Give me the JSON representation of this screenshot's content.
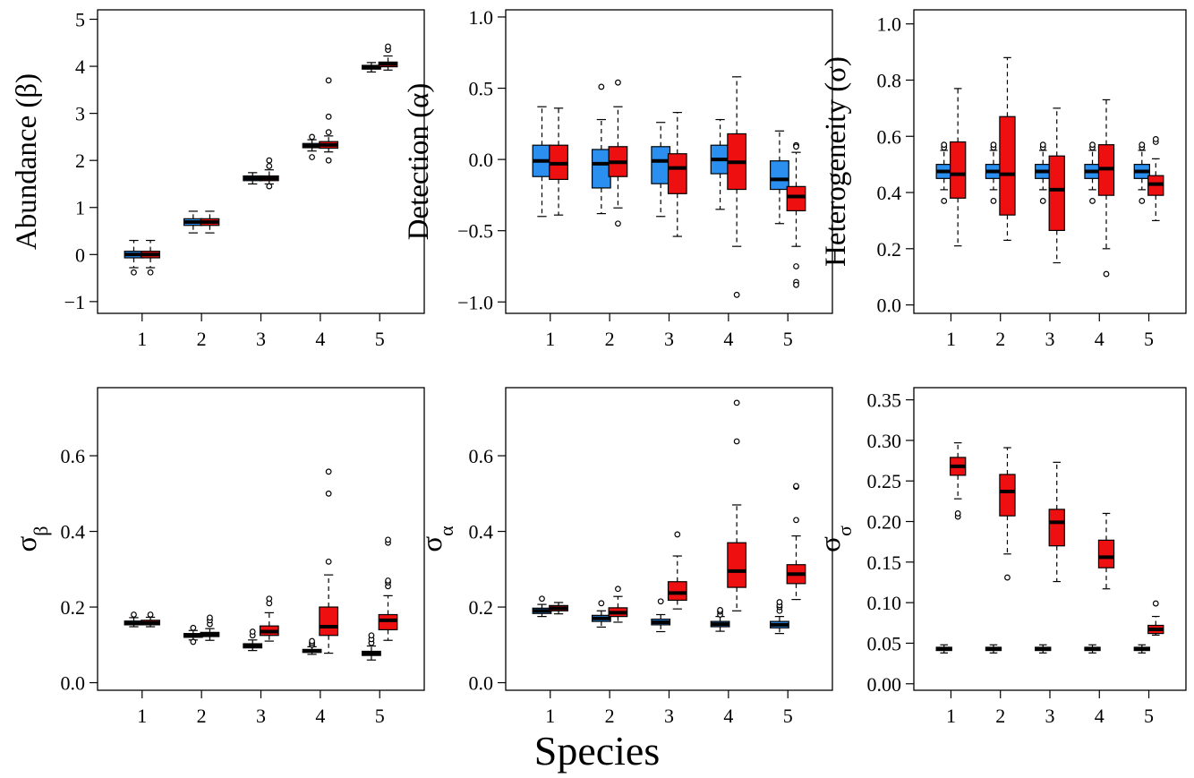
{
  "figure": {
    "xlabel": "Species",
    "colors": {
      "group_a": "#2b8ff0",
      "group_b": "#ee1010",
      "median": "#000000",
      "outlier_fill": "#ffffff"
    }
  },
  "chart_data": [
    {
      "type": "boxplot",
      "ylabel": "Abundance (β)",
      "ylim": [
        -1.25,
        5.2
      ],
      "yticks": [
        -1,
        0,
        1,
        2,
        3,
        4,
        5
      ],
      "yticklabels": [
        "−1",
        "0",
        "1",
        "2",
        "3",
        "4",
        "5"
      ],
      "categories": [
        "1",
        "2",
        "3",
        "4",
        "5"
      ],
      "series": [
        {
          "color": "#2b8ff0",
          "boxes": [
            {
              "whislo": -0.28,
              "q1": -0.07,
              "med": 0.0,
              "q3": 0.07,
              "whishi": 0.3,
              "fliers": [
                -0.38
              ]
            },
            {
              "whislo": 0.46,
              "q1": 0.62,
              "med": 0.69,
              "q3": 0.76,
              "whishi": 0.92,
              "fliers": []
            },
            {
              "whislo": 1.5,
              "q1": 1.57,
              "med": 1.62,
              "q3": 1.67,
              "whishi": 1.74,
              "fliers": []
            },
            {
              "whislo": 2.2,
              "q1": 2.27,
              "med": 2.31,
              "q3": 2.36,
              "whishi": 2.44,
              "fliers": [
                2.07,
                2.5
              ]
            },
            {
              "whislo": 3.88,
              "q1": 3.94,
              "med": 3.98,
              "q3": 4.02,
              "whishi": 4.08,
              "fliers": []
            }
          ]
        },
        {
          "color": "#ee1010",
          "boxes": [
            {
              "whislo": -0.28,
              "q1": -0.07,
              "med": 0.0,
              "q3": 0.07,
              "whishi": 0.3,
              "fliers": [
                -0.38
              ]
            },
            {
              "whislo": 0.46,
              "q1": 0.62,
              "med": 0.69,
              "q3": 0.76,
              "whishi": 0.92,
              "fliers": []
            },
            {
              "whislo": 1.5,
              "q1": 1.57,
              "med": 1.62,
              "q3": 1.67,
              "whishi": 1.8,
              "fliers": [
                1.45,
                1.88,
                2.0
              ]
            },
            {
              "whislo": 2.18,
              "q1": 2.26,
              "med": 2.33,
              "q3": 2.4,
              "whishi": 2.52,
              "fliers": [
                2.0,
                2.6,
                2.93,
                3.7
              ]
            },
            {
              "whislo": 3.92,
              "q1": 3.99,
              "med": 4.05,
              "q3": 4.09,
              "whishi": 4.22,
              "fliers": [
                4.35,
                4.42
              ]
            }
          ]
        }
      ]
    },
    {
      "type": "boxplot",
      "ylabel": "Detection (α)",
      "ylim": [
        -1.08,
        1.05
      ],
      "yticks": [
        -1.0,
        -0.5,
        0.0,
        0.5,
        1.0
      ],
      "yticklabels": [
        "−1.0",
        "−0.5",
        "0.0",
        "0.5",
        "1.0"
      ],
      "categories": [
        "1",
        "2",
        "3",
        "4",
        "5"
      ],
      "series": [
        {
          "color": "#2b8ff0",
          "boxes": [
            {
              "whislo": -0.4,
              "q1": -0.12,
              "med": -0.01,
              "q3": 0.1,
              "whishi": 0.37,
              "fliers": []
            },
            {
              "whislo": -0.38,
              "q1": -0.2,
              "med": -0.03,
              "q3": 0.07,
              "whishi": 0.28,
              "fliers": [
                0.51
              ]
            },
            {
              "whislo": -0.4,
              "q1": -0.17,
              "med": -0.01,
              "q3": 0.09,
              "whishi": 0.26,
              "fliers": []
            },
            {
              "whislo": -0.35,
              "q1": -0.1,
              "med": 0.0,
              "q3": 0.1,
              "whishi": 0.28,
              "fliers": []
            },
            {
              "whislo": -0.45,
              "q1": -0.21,
              "med": -0.14,
              "q3": -0.01,
              "whishi": 0.2,
              "fliers": []
            }
          ]
        },
        {
          "color": "#ee1010",
          "boxes": [
            {
              "whislo": -0.39,
              "q1": -0.14,
              "med": -0.03,
              "q3": 0.1,
              "whishi": 0.36,
              "fliers": []
            },
            {
              "whislo": -0.34,
              "q1": -0.12,
              "med": -0.02,
              "q3": 0.09,
              "whishi": 0.37,
              "fliers": [
                0.54,
                -0.45
              ]
            },
            {
              "whislo": -0.54,
              "q1": -0.24,
              "med": -0.06,
              "q3": 0.04,
              "whishi": 0.33,
              "fliers": []
            },
            {
              "whislo": -0.61,
              "q1": -0.21,
              "med": -0.02,
              "q3": 0.18,
              "whishi": 0.58,
              "fliers": [
                -0.95
              ]
            },
            {
              "whislo": -0.61,
              "q1": -0.36,
              "med": -0.26,
              "q3": -0.19,
              "whishi": 0.05,
              "fliers": [
                0.1,
                0.09,
                -0.75,
                -0.86,
                -0.88
              ]
            }
          ]
        }
      ]
    },
    {
      "type": "boxplot",
      "ylabel": "Heterogeneity (σ)",
      "ylim": [
        -0.03,
        1.05
      ],
      "yticks": [
        0.0,
        0.2,
        0.4,
        0.6,
        0.8,
        1.0
      ],
      "yticklabels": [
        "0.0",
        "0.2",
        "0.4",
        "0.6",
        "0.8",
        "1.0"
      ],
      "categories": [
        "1",
        "2",
        "3",
        "4",
        "5"
      ],
      "series": [
        {
          "color": "#2b8ff0",
          "boxes": [
            {
              "whislo": 0.41,
              "q1": 0.45,
              "med": 0.475,
              "q3": 0.5,
              "whishi": 0.55,
              "fliers": [
                0.37,
                0.56,
                0.57
              ]
            },
            {
              "whislo": 0.41,
              "q1": 0.45,
              "med": 0.475,
              "q3": 0.5,
              "whishi": 0.55,
              "fliers": [
                0.37,
                0.56,
                0.57
              ]
            },
            {
              "whislo": 0.41,
              "q1": 0.45,
              "med": 0.475,
              "q3": 0.5,
              "whishi": 0.55,
              "fliers": [
                0.37,
                0.56,
                0.57
              ]
            },
            {
              "whislo": 0.41,
              "q1": 0.45,
              "med": 0.475,
              "q3": 0.5,
              "whishi": 0.55,
              "fliers": [
                0.37,
                0.56,
                0.57
              ]
            },
            {
              "whislo": 0.41,
              "q1": 0.45,
              "med": 0.475,
              "q3": 0.5,
              "whishi": 0.55,
              "fliers": [
                0.37,
                0.56,
                0.57
              ]
            }
          ]
        },
        {
          "color": "#ee1010",
          "boxes": [
            {
              "whislo": 0.21,
              "q1": 0.38,
              "med": 0.465,
              "q3": 0.58,
              "whishi": 0.77,
              "fliers": []
            },
            {
              "whislo": 0.23,
              "q1": 0.32,
              "med": 0.465,
              "q3": 0.67,
              "whishi": 0.88,
              "fliers": []
            },
            {
              "whislo": 0.15,
              "q1": 0.265,
              "med": 0.41,
              "q3": 0.53,
              "whishi": 0.7,
              "fliers": []
            },
            {
              "whislo": 0.2,
              "q1": 0.39,
              "med": 0.485,
              "q3": 0.57,
              "whishi": 0.73,
              "fliers": [
                0.11
              ]
            },
            {
              "whislo": 0.3,
              "q1": 0.39,
              "med": 0.43,
              "q3": 0.46,
              "whishi": 0.52,
              "fliers": [
                0.58,
                0.59
              ]
            }
          ]
        }
      ]
    },
    {
      "type": "boxplot",
      "ylabel": "σ",
      "ylabel_sub": "β",
      "ylim": [
        -0.02,
        0.78
      ],
      "yticks": [
        0.0,
        0.2,
        0.4,
        0.6
      ],
      "yticklabels": [
        "0.0",
        "0.2",
        "0.4",
        "0.6"
      ],
      "categories": [
        "1",
        "2",
        "3",
        "4",
        "5"
      ],
      "series": [
        {
          "color": "#2b8ff0",
          "boxes": [
            {
              "whislo": 0.148,
              "q1": 0.153,
              "med": 0.157,
              "q3": 0.163,
              "whishi": 0.172,
              "fliers": [
                0.18
              ]
            },
            {
              "whislo": 0.113,
              "q1": 0.12,
              "med": 0.125,
              "q3": 0.13,
              "whishi": 0.138,
              "fliers": [
                0.108,
                0.145
              ]
            },
            {
              "whislo": 0.085,
              "q1": 0.092,
              "med": 0.098,
              "q3": 0.103,
              "whishi": 0.113,
              "fliers": [
                0.125,
                0.135
              ]
            },
            {
              "whislo": 0.075,
              "q1": 0.08,
              "med": 0.084,
              "q3": 0.088,
              "whishi": 0.095,
              "fliers": [
                0.1,
                0.105,
                0.11
              ]
            },
            {
              "whislo": 0.06,
              "q1": 0.072,
              "med": 0.077,
              "q3": 0.083,
              "whishi": 0.097,
              "fliers": [
                0.105,
                0.115,
                0.125
              ]
            }
          ]
        },
        {
          "color": "#ee1010",
          "boxes": [
            {
              "whislo": 0.148,
              "q1": 0.153,
              "med": 0.158,
              "q3": 0.165,
              "whishi": 0.173,
              "fliers": [
                0.18
              ]
            },
            {
              "whislo": 0.112,
              "q1": 0.122,
              "med": 0.128,
              "q3": 0.133,
              "whishi": 0.143,
              "fliers": [
                0.155,
                0.165,
                0.172
              ]
            },
            {
              "whislo": 0.11,
              "q1": 0.125,
              "med": 0.135,
              "q3": 0.15,
              "whishi": 0.185,
              "fliers": [
                0.21,
                0.222
              ]
            },
            {
              "whislo": 0.078,
              "q1": 0.125,
              "med": 0.148,
              "q3": 0.2,
              "whishi": 0.285,
              "fliers": [
                0.32,
                0.5,
                0.558
              ]
            },
            {
              "whislo": 0.112,
              "q1": 0.14,
              "med": 0.165,
              "q3": 0.18,
              "whishi": 0.23,
              "fliers": [
                0.255,
                0.265,
                0.27,
                0.37,
                0.378
              ]
            }
          ]
        }
      ]
    },
    {
      "type": "boxplot",
      "ylabel": "σ",
      "ylabel_sub": "α",
      "ylim": [
        -0.02,
        0.78
      ],
      "yticks": [
        0.0,
        0.2,
        0.4,
        0.6
      ],
      "yticklabels": [
        "0.0",
        "0.2",
        "0.4",
        "0.6"
      ],
      "categories": [
        "1",
        "2",
        "3",
        "4",
        "5"
      ],
      "series": [
        {
          "color": "#2b8ff0",
          "boxes": [
            {
              "whislo": 0.175,
              "q1": 0.183,
              "med": 0.19,
              "q3": 0.197,
              "whishi": 0.207,
              "fliers": [
                0.222
              ]
            },
            {
              "whislo": 0.147,
              "q1": 0.162,
              "med": 0.17,
              "q3": 0.178,
              "whishi": 0.19,
              "fliers": [
                0.21
              ]
            },
            {
              "whislo": 0.135,
              "q1": 0.153,
              "med": 0.16,
              "q3": 0.168,
              "whishi": 0.18,
              "fliers": [
                0.215
              ]
            },
            {
              "whislo": 0.136,
              "q1": 0.148,
              "med": 0.155,
              "q3": 0.162,
              "whishi": 0.175,
              "fliers": [
                0.18,
                0.188,
                0.192
              ]
            },
            {
              "whislo": 0.13,
              "q1": 0.145,
              "med": 0.153,
              "q3": 0.162,
              "whishi": 0.175,
              "fliers": [
                0.19,
                0.2,
                0.205,
                0.213
              ]
            }
          ]
        },
        {
          "color": "#ee1010",
          "boxes": [
            {
              "whislo": 0.182,
              "q1": 0.19,
              "med": 0.197,
              "q3": 0.204,
              "whishi": 0.212,
              "fliers": []
            },
            {
              "whislo": 0.16,
              "q1": 0.175,
              "med": 0.185,
              "q3": 0.198,
              "whishi": 0.228,
              "fliers": [
                0.248
              ]
            },
            {
              "whislo": 0.195,
              "q1": 0.218,
              "med": 0.237,
              "q3": 0.267,
              "whishi": 0.335,
              "fliers": [
                0.392
              ]
            },
            {
              "whislo": 0.19,
              "q1": 0.252,
              "med": 0.295,
              "q3": 0.37,
              "whishi": 0.47,
              "fliers": [
                0.638,
                0.74
              ]
            },
            {
              "whislo": 0.22,
              "q1": 0.262,
              "med": 0.287,
              "q3": 0.312,
              "whishi": 0.388,
              "fliers": [
                0.43,
                0.518,
                0.52
              ]
            }
          ]
        }
      ]
    },
    {
      "type": "boxplot",
      "ylabel": "σ",
      "ylabel_sub": "σ",
      "ylim": [
        -0.008,
        0.365
      ],
      "yticks": [
        0.0,
        0.05,
        0.1,
        0.15,
        0.2,
        0.25,
        0.3,
        0.35
      ],
      "yticklabels": [
        "0.00",
        "0.05",
        "0.10",
        "0.15",
        "0.20",
        "0.25",
        "0.30",
        "0.35"
      ],
      "categories": [
        "1",
        "2",
        "3",
        "4",
        "5"
      ],
      "series": [
        {
          "color": "#2b8ff0",
          "boxes": [
            {
              "whislo": 0.038,
              "q1": 0.041,
              "med": 0.043,
              "q3": 0.045,
              "whishi": 0.048,
              "fliers": []
            },
            {
              "whislo": 0.038,
              "q1": 0.041,
              "med": 0.043,
              "q3": 0.045,
              "whishi": 0.048,
              "fliers": []
            },
            {
              "whislo": 0.038,
              "q1": 0.041,
              "med": 0.043,
              "q3": 0.045,
              "whishi": 0.048,
              "fliers": []
            },
            {
              "whislo": 0.038,
              "q1": 0.041,
              "med": 0.043,
              "q3": 0.045,
              "whishi": 0.048,
              "fliers": []
            },
            {
              "whislo": 0.038,
              "q1": 0.041,
              "med": 0.043,
              "q3": 0.045,
              "whishi": 0.048,
              "fliers": []
            }
          ]
        },
        {
          "color": "#ee1010",
          "boxes": [
            {
              "whislo": 0.228,
              "q1": 0.257,
              "med": 0.268,
              "q3": 0.279,
              "whishi": 0.297,
              "fliers": [
                0.206,
                0.21
              ]
            },
            {
              "whislo": 0.16,
              "q1": 0.207,
              "med": 0.237,
              "q3": 0.258,
              "whishi": 0.291,
              "fliers": [
                0.131
              ]
            },
            {
              "whislo": 0.126,
              "q1": 0.17,
              "med": 0.199,
              "q3": 0.215,
              "whishi": 0.273,
              "fliers": []
            },
            {
              "whislo": 0.117,
              "q1": 0.143,
              "med": 0.156,
              "q3": 0.177,
              "whishi": 0.21,
              "fliers": []
            },
            {
              "whislo": 0.06,
              "q1": 0.062,
              "med": 0.067,
              "q3": 0.072,
              "whishi": 0.083,
              "fliers": [
                0.099
              ]
            }
          ]
        }
      ]
    }
  ]
}
